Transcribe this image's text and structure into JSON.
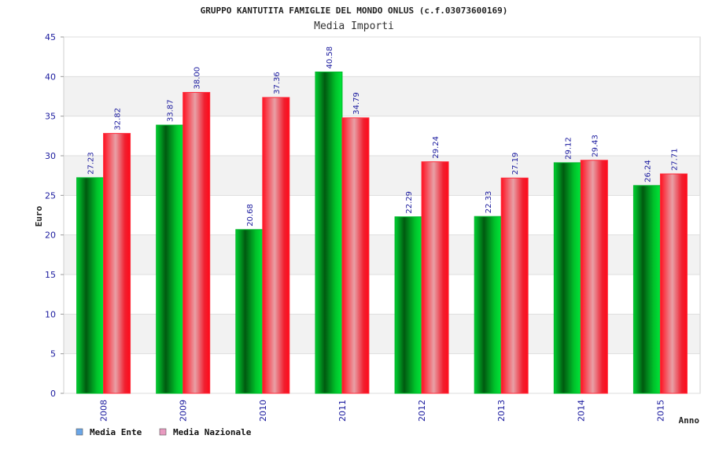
{
  "chart_data": {
    "type": "bar",
    "title": "GRUPPO KANTUTITA FAMIGLIE DEL MONDO ONLUS (c.f.03073600169)",
    "subtitle": "Media Importi",
    "xlabel": "Anno",
    "ylabel": "Euro",
    "ylim": [
      0,
      45
    ],
    "yticks": [
      0,
      5,
      10,
      15,
      20,
      25,
      30,
      35,
      40,
      45
    ],
    "grid": true,
    "legend_position": "bottom-left",
    "categories": [
      "2008",
      "2009",
      "2010",
      "2011",
      "2012",
      "2013",
      "2014",
      "2015"
    ],
    "series": [
      {
        "name": "Media Ente",
        "color": "#00aa22",
        "legend_color": "#6aa6e8",
        "values": [
          27.23,
          33.87,
          20.68,
          40.58,
          22.29,
          22.33,
          29.12,
          26.24
        ],
        "labels": [
          "27.23",
          "33.87",
          "20.68",
          "40.58",
          "22.29",
          "22.33",
          "29.12",
          "26.24"
        ]
      },
      {
        "name": "Media Nazionale",
        "color": "#ee1122",
        "legend_color": "#e89ac0",
        "values": [
          32.82,
          38.0,
          37.36,
          34.79,
          29.24,
          27.19,
          29.43,
          27.71
        ],
        "labels": [
          "32.82",
          "38.00",
          "37.36",
          "34.79",
          "29.24",
          "27.19",
          "29.43",
          "27.71"
        ]
      }
    ]
  }
}
